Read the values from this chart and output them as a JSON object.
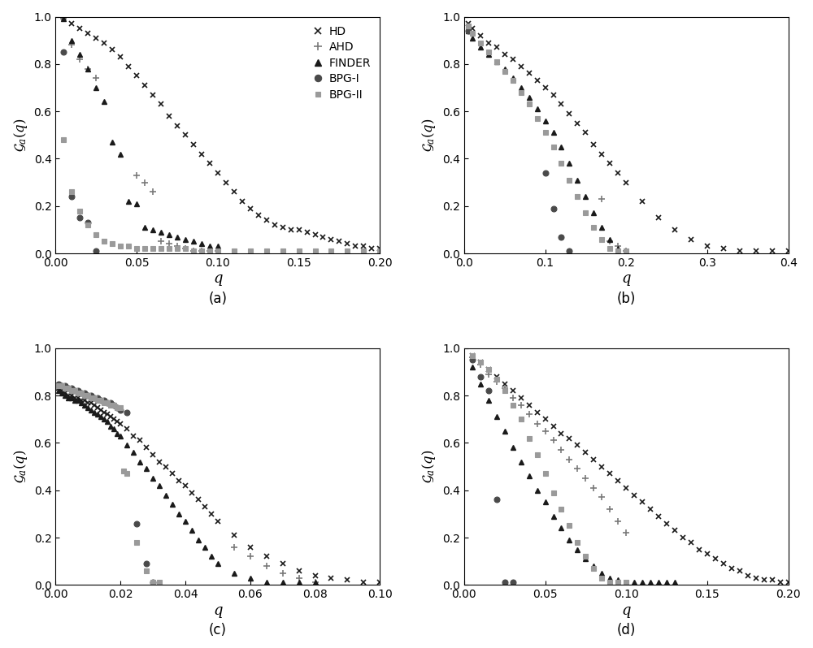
{
  "panels": [
    {
      "label": "(a)",
      "xlim": [
        0,
        0.2
      ],
      "xticks": [
        0.0,
        0.05,
        0.1,
        0.15,
        0.2
      ],
      "xticklabels": [
        "0.00",
        "0.05",
        "0.10",
        "0.15",
        "0.20"
      ],
      "ylim": [
        0,
        1.0
      ],
      "yticks": [
        0.0,
        0.2,
        0.4,
        0.6,
        0.8,
        1.0
      ],
      "show_legend": true,
      "HD": {
        "q": [
          0.005,
          0.01,
          0.015,
          0.02,
          0.025,
          0.03,
          0.035,
          0.04,
          0.045,
          0.05,
          0.055,
          0.06,
          0.065,
          0.07,
          0.075,
          0.08,
          0.085,
          0.09,
          0.095,
          0.1,
          0.105,
          0.11,
          0.115,
          0.12,
          0.125,
          0.13,
          0.135,
          0.14,
          0.145,
          0.15,
          0.155,
          0.16,
          0.165,
          0.17,
          0.175,
          0.18,
          0.185,
          0.19,
          0.195,
          0.2
        ],
        "g": [
          1.0,
          0.97,
          0.95,
          0.93,
          0.91,
          0.89,
          0.86,
          0.83,
          0.79,
          0.75,
          0.71,
          0.67,
          0.63,
          0.58,
          0.54,
          0.5,
          0.46,
          0.42,
          0.38,
          0.34,
          0.3,
          0.26,
          0.22,
          0.19,
          0.16,
          0.14,
          0.12,
          0.11,
          0.1,
          0.1,
          0.09,
          0.08,
          0.07,
          0.06,
          0.05,
          0.04,
          0.03,
          0.03,
          0.02,
          0.02
        ]
      },
      "AHD": {
        "q": [
          0.005,
          0.01,
          0.015,
          0.02,
          0.025,
          0.05,
          0.055,
          0.06,
          0.065,
          0.07,
          0.075,
          0.08,
          0.085,
          0.09,
          0.095,
          0.1
        ],
        "g": [
          0.99,
          0.88,
          0.82,
          0.78,
          0.74,
          0.33,
          0.3,
          0.26,
          0.05,
          0.04,
          0.03,
          0.02,
          0.01,
          0.01,
          0.01,
          0.01
        ]
      },
      "FINDER": {
        "q": [
          0.005,
          0.01,
          0.015,
          0.02,
          0.025,
          0.03,
          0.035,
          0.04,
          0.045,
          0.05,
          0.055,
          0.06,
          0.065,
          0.07,
          0.075,
          0.08,
          0.085,
          0.09,
          0.095,
          0.1
        ],
        "g": [
          0.99,
          0.9,
          0.84,
          0.78,
          0.7,
          0.64,
          0.47,
          0.42,
          0.22,
          0.21,
          0.11,
          0.1,
          0.09,
          0.08,
          0.07,
          0.06,
          0.05,
          0.04,
          0.03,
          0.03
        ]
      },
      "BPG_I": {
        "q": [
          0.005,
          0.01,
          0.015,
          0.02,
          0.025
        ],
        "g": [
          0.85,
          0.24,
          0.15,
          0.13,
          0.01
        ]
      },
      "BPG_II": {
        "q": [
          0.005,
          0.01,
          0.015,
          0.02,
          0.025,
          0.03,
          0.035,
          0.04,
          0.045,
          0.05,
          0.055,
          0.06,
          0.065,
          0.07,
          0.075,
          0.08,
          0.085,
          0.09,
          0.095,
          0.1,
          0.11,
          0.12,
          0.13,
          0.14,
          0.15,
          0.16,
          0.17,
          0.18,
          0.19,
          0.2
        ],
        "g": [
          0.48,
          0.26,
          0.18,
          0.12,
          0.08,
          0.05,
          0.04,
          0.03,
          0.03,
          0.02,
          0.02,
          0.02,
          0.02,
          0.02,
          0.02,
          0.02,
          0.01,
          0.01,
          0.01,
          0.01,
          0.01,
          0.01,
          0.01,
          0.01,
          0.01,
          0.01,
          0.01,
          0.01,
          0.01,
          0.01
        ]
      }
    },
    {
      "label": "(b)",
      "xlim": [
        0,
        0.4
      ],
      "xticks": [
        0.0,
        0.1,
        0.2,
        0.3,
        0.4
      ],
      "xticklabels": [
        "0.0",
        "0.1",
        "0.2",
        "0.3",
        "0.4"
      ],
      "ylim": [
        0,
        1.0
      ],
      "yticks": [
        0.0,
        0.2,
        0.4,
        0.6,
        0.8,
        1.0
      ],
      "show_legend": false,
      "HD": {
        "q": [
          0.005,
          0.01,
          0.02,
          0.03,
          0.04,
          0.05,
          0.06,
          0.07,
          0.08,
          0.09,
          0.1,
          0.11,
          0.12,
          0.13,
          0.14,
          0.15,
          0.16,
          0.17,
          0.18,
          0.19,
          0.2,
          0.22,
          0.24,
          0.26,
          0.28,
          0.3,
          0.32,
          0.34,
          0.36,
          0.38,
          0.4
        ],
        "g": [
          0.97,
          0.95,
          0.92,
          0.89,
          0.87,
          0.84,
          0.82,
          0.79,
          0.76,
          0.73,
          0.7,
          0.67,
          0.63,
          0.59,
          0.55,
          0.51,
          0.46,
          0.42,
          0.38,
          0.34,
          0.3,
          0.22,
          0.15,
          0.1,
          0.06,
          0.03,
          0.02,
          0.01,
          0.01,
          0.01,
          0.01
        ]
      },
      "AHD": {
        "q": [
          0.17,
          0.18,
          0.19,
          0.2
        ],
        "g": [
          0.23,
          0.05,
          0.03,
          0.01
        ]
      },
      "FINDER": {
        "q": [
          0.005,
          0.01,
          0.02,
          0.03,
          0.04,
          0.05,
          0.06,
          0.07,
          0.08,
          0.09,
          0.1,
          0.11,
          0.12,
          0.13,
          0.14,
          0.15,
          0.16,
          0.17,
          0.18,
          0.19,
          0.2
        ],
        "g": [
          0.94,
          0.91,
          0.87,
          0.84,
          0.81,
          0.78,
          0.74,
          0.7,
          0.66,
          0.61,
          0.56,
          0.51,
          0.45,
          0.38,
          0.31,
          0.24,
          0.17,
          0.11,
          0.06,
          0.02,
          0.01
        ]
      },
      "BPG_I": {
        "q": [
          0.005,
          0.1,
          0.11,
          0.12,
          0.13
        ],
        "g": [
          0.94,
          0.34,
          0.19,
          0.07,
          0.01
        ]
      },
      "BPG_II": {
        "q": [
          0.005,
          0.01,
          0.02,
          0.03,
          0.04,
          0.05,
          0.06,
          0.07,
          0.08,
          0.09,
          0.1,
          0.11,
          0.12,
          0.13,
          0.14,
          0.15,
          0.16,
          0.17,
          0.18,
          0.19,
          0.2
        ],
        "g": [
          0.96,
          0.93,
          0.89,
          0.85,
          0.81,
          0.77,
          0.73,
          0.68,
          0.63,
          0.57,
          0.51,
          0.45,
          0.38,
          0.31,
          0.24,
          0.17,
          0.11,
          0.06,
          0.02,
          0.01,
          0.01
        ]
      }
    },
    {
      "label": "(c)",
      "xlim": [
        0,
        0.1
      ],
      "xticks": [
        0.0,
        0.02,
        0.04,
        0.06,
        0.08,
        0.1
      ],
      "xticklabels": [
        "0.00",
        "0.02",
        "0.04",
        "0.06",
        "0.08",
        "0.10"
      ],
      "ylim": [
        0,
        1.0
      ],
      "yticks": [
        0.0,
        0.2,
        0.4,
        0.6,
        0.8,
        1.0
      ],
      "show_legend": false,
      "HD": {
        "q": [
          0.001,
          0.002,
          0.003,
          0.004,
          0.005,
          0.006,
          0.007,
          0.008,
          0.009,
          0.01,
          0.011,
          0.012,
          0.013,
          0.014,
          0.015,
          0.016,
          0.017,
          0.018,
          0.019,
          0.02,
          0.022,
          0.024,
          0.026,
          0.028,
          0.03,
          0.032,
          0.034,
          0.036,
          0.038,
          0.04,
          0.042,
          0.044,
          0.046,
          0.048,
          0.05,
          0.055,
          0.06,
          0.065,
          0.07,
          0.075,
          0.08,
          0.085,
          0.09,
          0.095,
          0.1
        ],
        "g": [
          0.83,
          0.82,
          0.81,
          0.8,
          0.8,
          0.79,
          0.79,
          0.78,
          0.78,
          0.77,
          0.77,
          0.76,
          0.75,
          0.74,
          0.73,
          0.72,
          0.71,
          0.7,
          0.69,
          0.68,
          0.66,
          0.63,
          0.61,
          0.58,
          0.55,
          0.52,
          0.5,
          0.47,
          0.44,
          0.42,
          0.39,
          0.36,
          0.33,
          0.3,
          0.27,
          0.21,
          0.16,
          0.12,
          0.09,
          0.06,
          0.04,
          0.03,
          0.02,
          0.01,
          0.01
        ]
      },
      "AHD": {
        "q": [
          0.055,
          0.06,
          0.065,
          0.07,
          0.075,
          0.08
        ],
        "g": [
          0.16,
          0.12,
          0.08,
          0.05,
          0.03,
          0.01
        ]
      },
      "FINDER": {
        "q": [
          0.001,
          0.002,
          0.003,
          0.004,
          0.005,
          0.006,
          0.007,
          0.008,
          0.009,
          0.01,
          0.011,
          0.012,
          0.013,
          0.014,
          0.015,
          0.016,
          0.017,
          0.018,
          0.019,
          0.02,
          0.022,
          0.024,
          0.026,
          0.028,
          0.03,
          0.032,
          0.034,
          0.036,
          0.038,
          0.04,
          0.042,
          0.044,
          0.046,
          0.048,
          0.05,
          0.055,
          0.06,
          0.065,
          0.07,
          0.075,
          0.08
        ],
        "g": [
          0.82,
          0.81,
          0.8,
          0.79,
          0.79,
          0.78,
          0.78,
          0.77,
          0.76,
          0.75,
          0.74,
          0.73,
          0.72,
          0.71,
          0.7,
          0.69,
          0.67,
          0.66,
          0.64,
          0.63,
          0.59,
          0.56,
          0.52,
          0.49,
          0.45,
          0.42,
          0.38,
          0.34,
          0.3,
          0.27,
          0.23,
          0.19,
          0.16,
          0.12,
          0.09,
          0.05,
          0.03,
          0.01,
          0.01,
          0.01,
          0.01
        ]
      },
      "BPG_I": {
        "q": [
          0.001,
          0.002,
          0.003,
          0.004,
          0.005,
          0.006,
          0.007,
          0.008,
          0.009,
          0.01,
          0.011,
          0.012,
          0.013,
          0.014,
          0.015,
          0.016,
          0.017,
          0.018,
          0.019,
          0.02,
          0.022,
          0.025,
          0.028,
          0.03
        ],
        "g": [
          0.85,
          0.84,
          0.84,
          0.83,
          0.83,
          0.82,
          0.82,
          0.81,
          0.81,
          0.8,
          0.8,
          0.79,
          0.79,
          0.78,
          0.78,
          0.77,
          0.77,
          0.76,
          0.75,
          0.74,
          0.73,
          0.26,
          0.09,
          0.01
        ]
      },
      "BPG_II": {
        "q": [
          0.001,
          0.002,
          0.003,
          0.004,
          0.005,
          0.006,
          0.007,
          0.008,
          0.009,
          0.01,
          0.011,
          0.012,
          0.013,
          0.014,
          0.015,
          0.016,
          0.017,
          0.018,
          0.019,
          0.02,
          0.021,
          0.022,
          0.025,
          0.028,
          0.03,
          0.032
        ],
        "g": [
          0.84,
          0.84,
          0.83,
          0.83,
          0.82,
          0.82,
          0.81,
          0.81,
          0.8,
          0.8,
          0.79,
          0.79,
          0.78,
          0.78,
          0.77,
          0.77,
          0.76,
          0.76,
          0.75,
          0.75,
          0.48,
          0.47,
          0.18,
          0.06,
          0.01,
          0.01
        ]
      }
    },
    {
      "label": "(d)",
      "xlim": [
        0,
        0.2
      ],
      "xticks": [
        0.0,
        0.05,
        0.1,
        0.15,
        0.2
      ],
      "xticklabels": [
        "0.00",
        "0.05",
        "0.10",
        "0.15",
        "0.20"
      ],
      "ylim": [
        0,
        1.0
      ],
      "yticks": [
        0.0,
        0.2,
        0.4,
        0.6,
        0.8,
        1.0
      ],
      "show_legend": false,
      "HD": {
        "q": [
          0.005,
          0.01,
          0.015,
          0.02,
          0.025,
          0.03,
          0.035,
          0.04,
          0.045,
          0.05,
          0.055,
          0.06,
          0.065,
          0.07,
          0.075,
          0.08,
          0.085,
          0.09,
          0.095,
          0.1,
          0.105,
          0.11,
          0.115,
          0.12,
          0.125,
          0.13,
          0.135,
          0.14,
          0.145,
          0.15,
          0.155,
          0.16,
          0.165,
          0.17,
          0.175,
          0.18,
          0.185,
          0.19,
          0.195,
          0.2
        ],
        "g": [
          0.97,
          0.94,
          0.91,
          0.88,
          0.85,
          0.82,
          0.79,
          0.76,
          0.73,
          0.7,
          0.67,
          0.64,
          0.62,
          0.59,
          0.56,
          0.53,
          0.5,
          0.47,
          0.44,
          0.41,
          0.38,
          0.35,
          0.32,
          0.29,
          0.26,
          0.23,
          0.2,
          0.18,
          0.15,
          0.13,
          0.11,
          0.09,
          0.07,
          0.06,
          0.04,
          0.03,
          0.02,
          0.02,
          0.01,
          0.01
        ]
      },
      "AHD": {
        "q": [
          0.005,
          0.01,
          0.015,
          0.02,
          0.025,
          0.03,
          0.035,
          0.04,
          0.045,
          0.05,
          0.055,
          0.06,
          0.065,
          0.07,
          0.075,
          0.08,
          0.085,
          0.09,
          0.095,
          0.1
        ],
        "g": [
          0.96,
          0.93,
          0.89,
          0.86,
          0.83,
          0.79,
          0.76,
          0.72,
          0.68,
          0.65,
          0.61,
          0.57,
          0.53,
          0.49,
          0.45,
          0.41,
          0.37,
          0.32,
          0.27,
          0.22
        ]
      },
      "FINDER": {
        "q": [
          0.005,
          0.01,
          0.015,
          0.02,
          0.025,
          0.03,
          0.035,
          0.04,
          0.045,
          0.05,
          0.055,
          0.06,
          0.065,
          0.07,
          0.075,
          0.08,
          0.085,
          0.09,
          0.095,
          0.1,
          0.105,
          0.11,
          0.115,
          0.12,
          0.125,
          0.13
        ],
        "g": [
          0.92,
          0.85,
          0.78,
          0.71,
          0.65,
          0.58,
          0.52,
          0.46,
          0.4,
          0.35,
          0.29,
          0.24,
          0.19,
          0.15,
          0.11,
          0.08,
          0.05,
          0.03,
          0.02,
          0.01,
          0.01,
          0.01,
          0.01,
          0.01,
          0.01,
          0.01
        ]
      },
      "BPG_I": {
        "q": [
          0.005,
          0.01,
          0.015,
          0.02,
          0.025,
          0.03
        ],
        "g": [
          0.95,
          0.88,
          0.82,
          0.36,
          0.01,
          0.01
        ]
      },
      "BPG_II": {
        "q": [
          0.005,
          0.01,
          0.015,
          0.02,
          0.025,
          0.03,
          0.035,
          0.04,
          0.045,
          0.05,
          0.055,
          0.06,
          0.065,
          0.07,
          0.075,
          0.08,
          0.085,
          0.09,
          0.095,
          0.1
        ],
        "g": [
          0.97,
          0.94,
          0.91,
          0.87,
          0.82,
          0.76,
          0.7,
          0.62,
          0.55,
          0.47,
          0.39,
          0.32,
          0.25,
          0.18,
          0.12,
          0.07,
          0.03,
          0.01,
          0.01,
          0.01
        ]
      }
    }
  ],
  "colors": {
    "HD": "#1a1a1a",
    "AHD": "#7a7a7a",
    "FINDER": "#1a1a1a",
    "BPG_I": "#4a4a4a",
    "BPG_II": "#9a9a9a"
  },
  "markers": {
    "HD": "x",
    "AHD": "+",
    "FINDER": "^",
    "BPG_I": "o",
    "BPG_II": "s"
  },
  "markersizes": {
    "HD": 5,
    "AHD": 6,
    "FINDER": 5,
    "BPG_I": 5,
    "BPG_II": 4
  },
  "markeredgewidths": {
    "HD": 1.2,
    "AHD": 1.2,
    "FINDER": 1.0,
    "BPG_I": 0.8,
    "BPG_II": 0.8
  },
  "legend_labels": [
    "HD",
    "AHD",
    "FINDER",
    "BPG-I",
    "BPG-II"
  ],
  "ylabel": "$\\mathcal{G}_a(q)$",
  "xlabel": "$q$"
}
